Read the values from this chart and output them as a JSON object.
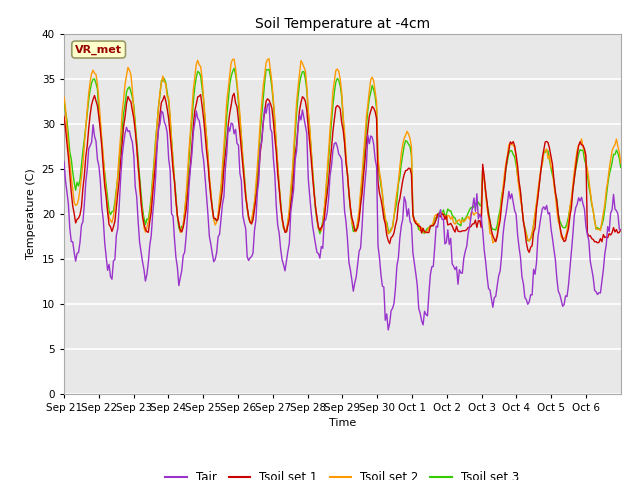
{
  "title": "Soil Temperature at -4cm",
  "xlabel": "Time",
  "ylabel": "Temperature (C)",
  "ylim": [
    0,
    40
  ],
  "yticks": [
    0,
    5,
    10,
    15,
    20,
    25,
    30,
    35,
    40
  ],
  "colors": {
    "Tair": "#9933cc",
    "Tsoil1": "#cc0000",
    "Tsoil2": "#ff9900",
    "Tsoil3": "#33cc00"
  },
  "legend_labels": [
    "Tair",
    "Tsoil set 1",
    "Tsoil set 2",
    "Tsoil set 3"
  ],
  "annotation": "VR_met",
  "bg_color": "#e8e8e8",
  "fig_color": "#ffffff",
  "n_days": 16,
  "tick_labels": [
    "Sep 21",
    "Sep 22",
    "Sep 23",
    "Sep 24",
    "Sep 25",
    "Sep 26",
    "Sep 27",
    "Sep 28",
    "Sep 29",
    "Sep 30",
    "Oct 1",
    "Oct 2",
    "Oct 3",
    "Oct 4",
    "Oct 5",
    "Oct 6"
  ]
}
